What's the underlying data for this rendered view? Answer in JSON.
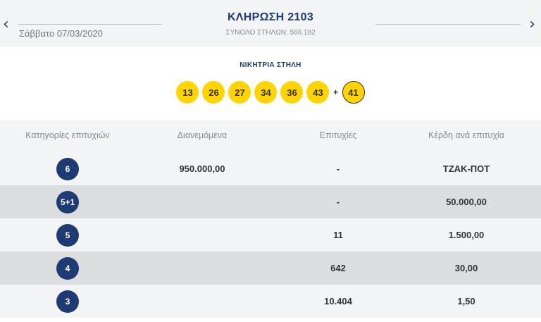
{
  "header": {
    "prev_icon": "chevron-left-icon",
    "next_icon": "chevron-right-icon",
    "prev_glyph": "‹",
    "next_glyph": "›",
    "date": "Σάββατο 07/03/2020",
    "draw_title": "ΚΛΗΡΩΣΗ 2103",
    "total_columns": "ΣΥΝΟΛΟ ΣΤΗΛΩΝ: 566.182"
  },
  "winning": {
    "title": "ΝΙΚΗΤΡΙΑ ΣΤΗΛΗ",
    "numbers": [
      "13",
      "26",
      "27",
      "34",
      "36",
      "43"
    ],
    "plus": "+",
    "bonus": "41",
    "ball_color": "#ffd400"
  },
  "table": {
    "headers": [
      "Κατηγορίες επιτυχιών",
      "Διανεμόμενα",
      "Επιτυχίες",
      "Κέρδη ανά επιτυχία"
    ],
    "badge_color": "#1f3b73",
    "rows": [
      {
        "category": "6",
        "distributed": "950.000,00",
        "winners": "-",
        "prize": "ΤΖΑΚ-ΠΟΤ"
      },
      {
        "category": "5+1",
        "distributed": "",
        "winners": "-",
        "prize": "50.000,00"
      },
      {
        "category": "5",
        "distributed": "",
        "winners": "11",
        "prize": "1.500,00"
      },
      {
        "category": "4",
        "distributed": "",
        "winners": "642",
        "prize": "30,00"
      },
      {
        "category": "3",
        "distributed": "",
        "winners": "10.404",
        "prize": "1,50"
      }
    ]
  }
}
